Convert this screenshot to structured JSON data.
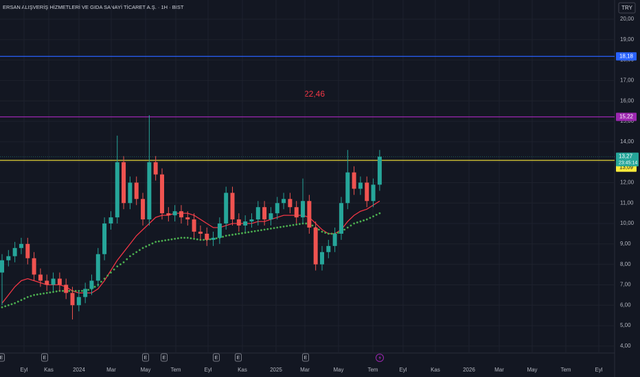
{
  "chart_data": {
    "type": "candlestick",
    "title": "ERSAN ALIŞVERİŞ HİZMETLERİ VE GIDA SANAYİ TİCARET A.Ş. · 1H · BIST",
    "currency": "TRY",
    "annotation": "22,46",
    "up_color": "#26a69a",
    "down_color": "#ef5350",
    "grid": true,
    "ylim": [
      3.66,
      20.94
    ],
    "yticks": [
      {
        "value": 4,
        "label": "4,00"
      },
      {
        "value": 5,
        "label": "5,00"
      },
      {
        "value": 6,
        "label": "6,00"
      },
      {
        "value": 7,
        "label": "7,00"
      },
      {
        "value": 8,
        "label": "8,00"
      },
      {
        "value": 9,
        "label": "9,00"
      },
      {
        "value": 10,
        "label": "10,00"
      },
      {
        "value": 11,
        "label": "11,00"
      },
      {
        "value": 12,
        "label": "12,00"
      },
      {
        "value": 13,
        "label": "13,00"
      },
      {
        "value": 14,
        "label": "14,00"
      },
      {
        "value": 15,
        "label": "15,00"
      },
      {
        "value": 16,
        "label": "16,00"
      },
      {
        "value": 17,
        "label": "17,00"
      },
      {
        "value": 18,
        "label": "18,00"
      },
      {
        "value": 19,
        "label": "19,00"
      },
      {
        "value": 20,
        "label": "20,00"
      }
    ],
    "x_axis_labels": [
      "Eyl",
      "Kas",
      "2024",
      "Mar",
      "May",
      "Tem",
      "Eyl",
      "Kas",
      "2025",
      "Mar",
      "May",
      "Tem",
      "Eyl",
      "Kas",
      "2026",
      "Mar",
      "May",
      "Tem",
      "Eyl"
    ],
    "events": [
      "E",
      "E",
      "E",
      "E",
      "E",
      "E",
      "E"
    ],
    "open": [
      7.6,
      8.2,
      8.4,
      8.8,
      9.0,
      8.3,
      7.5,
      7.2,
      7.0,
      7.3,
      7.0,
      6.6,
      6.0,
      6.4,
      6.8,
      7.2,
      8.5,
      10.0,
      10.3,
      13.0,
      11.0,
      12.0,
      11.2,
      10.2,
      13.0,
      12.4,
      10.5,
      10.4,
      10.6,
      10.3,
      10.2,
      9.6,
      9.5,
      9.2,
      9.3,
      10.0,
      11.5,
      10.2,
      9.9,
      10.1,
      10.2,
      10.8,
      10.2,
      10.5,
      11.0,
      11.2,
      10.8,
      10.3,
      11.1,
      9.8,
      8.0,
      8.6,
      8.9,
      9.5,
      11.0,
      12.5,
      11.7,
      12.0,
      11.1,
      11.9
    ],
    "high": [
      8.5,
      8.7,
      9.1,
      9.3,
      9.3,
      8.6,
      7.8,
      7.5,
      7.6,
      7.6,
      7.3,
      6.9,
      6.7,
      7.1,
      7.5,
      8.8,
      10.3,
      10.6,
      14.3,
      13.3,
      12.3,
      12.3,
      11.5,
      15.3,
      13.3,
      12.7,
      10.8,
      10.9,
      10.9,
      10.6,
      10.5,
      9.9,
      9.8,
      9.6,
      10.3,
      11.8,
      11.8,
      10.5,
      10.4,
      10.5,
      11.1,
      11.1,
      10.8,
      11.3,
      11.5,
      11.5,
      11.1,
      12.2,
      11.4,
      10.1,
      8.9,
      9.2,
      9.8,
      11.3,
      13.6,
      12.8,
      12.3,
      12.3,
      12.2,
      13.6
    ],
    "low": [
      6.0,
      7.9,
      8.1,
      8.5,
      8.0,
      7.2,
      6.9,
      6.7,
      6.7,
      6.7,
      6.3,
      5.3,
      5.7,
      6.1,
      6.5,
      6.9,
      8.2,
      9.7,
      10.0,
      10.7,
      10.7,
      10.9,
      9.9,
      9.9,
      12.1,
      10.2,
      10.1,
      10.1,
      10.0,
      9.9,
      9.3,
      9.2,
      8.9,
      8.9,
      9.0,
      9.7,
      9.9,
      9.6,
      9.6,
      9.8,
      9.9,
      9.9,
      9.9,
      10.2,
      10.7,
      10.5,
      10.0,
      10.0,
      9.5,
      7.7,
      7.7,
      8.3,
      8.6,
      9.2,
      10.7,
      11.4,
      11.4,
      10.8,
      10.8,
      11.6
    ],
    "close": [
      8.2,
      8.4,
      8.8,
      9.0,
      8.3,
      7.5,
      7.2,
      7.0,
      7.3,
      7.0,
      6.6,
      6.0,
      6.4,
      6.8,
      7.2,
      8.5,
      10.0,
      10.3,
      13.0,
      11.0,
      12.0,
      11.2,
      10.2,
      13.0,
      12.4,
      10.5,
      10.4,
      10.6,
      10.3,
      10.2,
      9.6,
      9.5,
      9.2,
      9.3,
      10.0,
      11.5,
      10.2,
      9.9,
      10.1,
      10.2,
      10.8,
      10.2,
      10.5,
      11.0,
      11.2,
      10.8,
      10.3,
      11.1,
      9.8,
      8.0,
      8.6,
      8.9,
      9.5,
      11.0,
      12.5,
      11.7,
      12.0,
      11.1,
      11.9,
      13.27
    ],
    "moving_averages": [
      {
        "color": "#f23645",
        "style": "solid",
        "values": [
          6.1,
          6.5,
          6.9,
          7.2,
          7.3,
          7.2,
          7.1,
          7.0,
          7.0,
          7.0,
          6.9,
          6.7,
          6.6,
          6.6,
          6.6,
          6.8,
          7.2,
          7.7,
          8.2,
          8.6,
          9.0,
          9.4,
          9.7,
          10.0,
          10.3,
          10.4,
          10.4,
          10.5,
          10.5,
          10.5,
          10.4,
          10.2,
          10.0,
          9.8,
          9.8,
          9.9,
          10.0,
          10.0,
          10.0,
          10.0,
          10.1,
          10.1,
          10.2,
          10.3,
          10.4,
          10.4,
          10.4,
          10.4,
          10.3,
          10.0,
          9.7,
          9.5,
          9.5,
          9.7,
          10.1,
          10.4,
          10.6,
          10.7,
          10.9,
          11.1
        ]
      },
      {
        "color": "#4caf50",
        "style": "dotted",
        "values": [
          5.9,
          6.0,
          6.1,
          6.25,
          6.4,
          6.5,
          6.55,
          6.6,
          6.65,
          6.7,
          6.7,
          6.7,
          6.7,
          6.7,
          6.8,
          7.0,
          7.3,
          7.6,
          7.9,
          8.1,
          8.4,
          8.6,
          8.8,
          8.95,
          9.1,
          9.15,
          9.2,
          9.25,
          9.3,
          9.3,
          9.25,
          9.2,
          9.2,
          9.25,
          9.3,
          9.4,
          9.45,
          9.5,
          9.55,
          9.6,
          9.65,
          9.7,
          9.75,
          9.8,
          9.85,
          9.9,
          9.95,
          10.0,
          10.0,
          9.8,
          9.6,
          9.5,
          9.5,
          9.6,
          9.8,
          10.0,
          10.1,
          10.2,
          10.35,
          10.5
        ]
      }
    ],
    "levels": [
      {
        "value": 18.18,
        "label": "18,18",
        "color": "#2962ff"
      },
      {
        "value": 15.22,
        "label": "15,22",
        "color": "#9c27b0"
      },
      {
        "value": 13.09,
        "label": "13,09",
        "color": "#ffeb3b"
      }
    ],
    "last_price": {
      "value": 13.27,
      "label": "13,27",
      "countdown": "23:45:14",
      "color": "#26a69a"
    }
  }
}
